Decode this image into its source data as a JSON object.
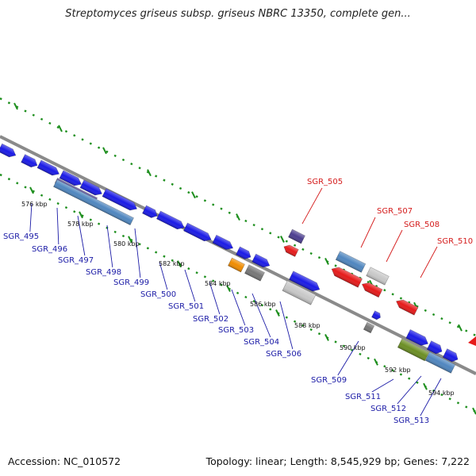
{
  "title": "Streptomyces griseus subsp. griseus NBRC 13350, complete gen...",
  "footer": {
    "accession": "Accession: NC_010572",
    "topology": "Topology: linear; Length: 8,545,929 bp; Genes: 7,222"
  },
  "colors": {
    "gene_forward": "#1a1ae6",
    "gene_reverse": "#e61a1a",
    "gene_purple": "#4b3d8f",
    "gene_steelblue": "#4f86bf",
    "gene_gray": "#777777",
    "gene_lightgray": "#c8c8c8",
    "gene_orange": "#f08c00",
    "gene_green": "#6b8e23",
    "label_blue": "#1a1aa6",
    "label_red": "#d41a1a",
    "track_dots": "#1e8f1e",
    "backbone": "#8a8a8a"
  },
  "kbp_labels": [
    "576 kbp",
    "578 kbp",
    "580 kbp",
    "582 kbp",
    "584 kbp",
    "586 kbp",
    "588 kbp",
    "590 kbp",
    "592 kbp",
    "594 kbp"
  ],
  "gene_labels_blue": [
    "SGR_495",
    "SGR_496",
    "SGR_497",
    "SGR_498",
    "SGR_499",
    "SGR_500",
    "SGR_501",
    "SGR_502",
    "SGR_503",
    "SGR_504",
    "SGR_506",
    "SGR_509",
    "SGR_511",
    "SGR_512",
    "SGR_513"
  ],
  "gene_labels_red": [
    "SGR_505",
    "SGR_507",
    "SGR_508",
    "SGR_510"
  ]
}
